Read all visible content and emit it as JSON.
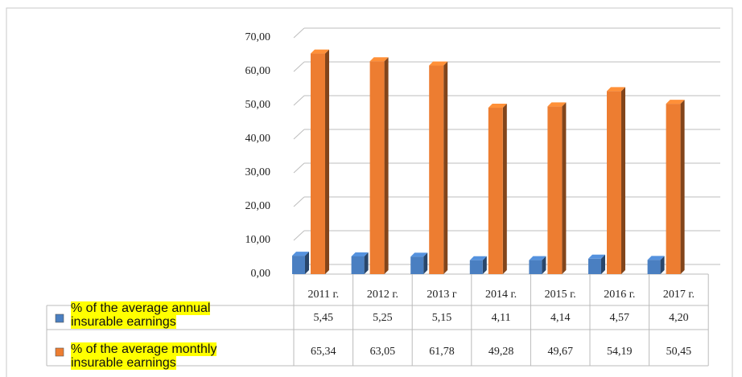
{
  "chart_data": {
    "type": "bar",
    "categories": [
      "2011 г.",
      "2012 г.",
      "2013 г",
      "2014 г.",
      "2015 г.",
      "2016 г.",
      "2017 г."
    ],
    "series": [
      {
        "name": "% of the average annual insurable earnings",
        "color": "#4a7fc1",
        "values": [
          5.45,
          5.25,
          5.15,
          4.11,
          4.14,
          4.57,
          4.2
        ],
        "value_labels": [
          "5,45",
          "5,25",
          "5,15",
          "4,11",
          "4,14",
          "4,57",
          "4,20"
        ]
      },
      {
        "name": "% of the average monthly insurable earnings",
        "color": "#ed7d31",
        "values": [
          65.34,
          63.05,
          61.78,
          49.28,
          49.67,
          54.19,
          50.45
        ],
        "value_labels": [
          "65,34",
          "63,05",
          "61,78",
          "49,28",
          "49,67",
          "54,19",
          "50,45"
        ]
      }
    ],
    "ylim": [
      0,
      70
    ],
    "yticks": [
      {
        "value": 0,
        "label": "0,00"
      },
      {
        "value": 10,
        "label": "10,00"
      },
      {
        "value": 20,
        "label": "20,00"
      },
      {
        "value": 30,
        "label": "30,00"
      },
      {
        "value": 40,
        "label": "40,00"
      },
      {
        "value": 50,
        "label": "50,00"
      },
      {
        "value": 60,
        "label": "60,00"
      },
      {
        "value": 70,
        "label": "70,00"
      }
    ],
    "grid": true
  }
}
